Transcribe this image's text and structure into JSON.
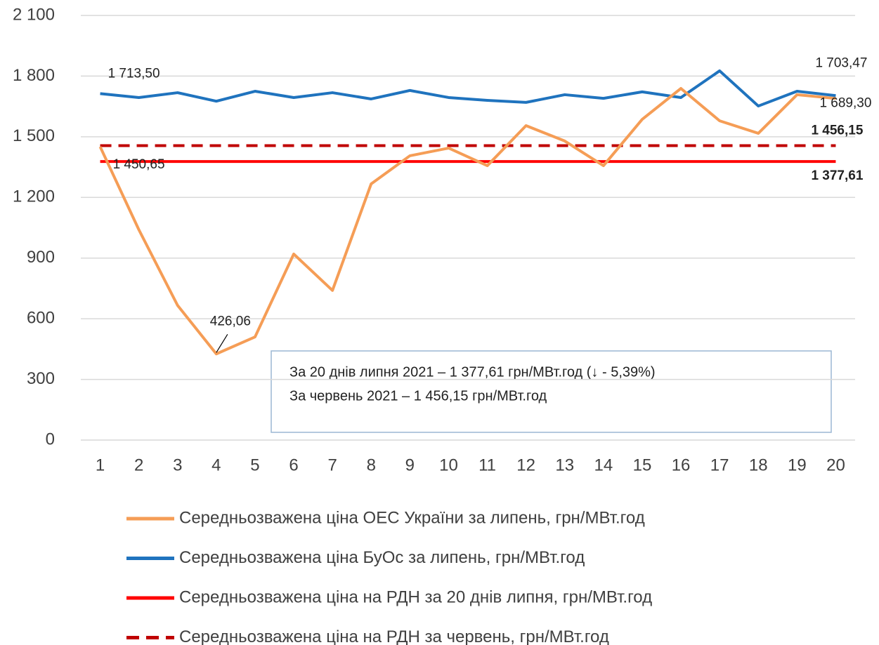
{
  "chart_data": {
    "type": "line",
    "categories": [
      "1",
      "2",
      "3",
      "4",
      "5",
      "6",
      "7",
      "8",
      "9",
      "10",
      "11",
      "12",
      "13",
      "14",
      "15",
      "16",
      "17",
      "18",
      "19",
      "20"
    ],
    "ylim": [
      0,
      2100
    ],
    "yticks": [
      0,
      300,
      600,
      900,
      {
        "value": 1200,
        "label": "1 200"
      },
      {
        "value": 1500,
        "label": "1 500"
      },
      {
        "value": 1800,
        "label": "1 800"
      },
      {
        "value": 2100,
        "label": "2 100"
      }
    ],
    "grid": true,
    "legend": "bottom",
    "series": [
      {
        "name": "Середньозважена ціна ОЕС України за липень, грн/МВт.год",
        "color": "#f59d56",
        "dash": false,
        "values": [
          1450.65,
          1040,
          666,
          426.06,
          510,
          920,
          740,
          1267,
          1406,
          1444,
          1357,
          1555,
          1479,
          1357,
          1586,
          1739,
          1579,
          1517,
          1708,
          1689.3
        ],
        "value_labels": [
          "1 450,65",
          null,
          null,
          "426,06",
          null,
          null,
          null,
          null,
          null,
          null,
          null,
          null,
          null,
          null,
          null,
          null,
          null,
          null,
          null,
          "1 689,30"
        ]
      },
      {
        "name": "Середньозважена ціна БуОс за липень, грн/МВт.год",
        "color": "#1f73be",
        "dash": false,
        "values": [
          1713.5,
          1694,
          1718,
          1676,
          1725,
          1694,
          1718,
          1687,
          1729,
          1694,
          1680,
          1670,
          1708,
          1690,
          1722,
          1694,
          1826,
          1652,
          1725,
          1703.47
        ],
        "value_labels": [
          "1 713,50",
          null,
          null,
          null,
          null,
          null,
          null,
          null,
          null,
          null,
          null,
          null,
          null,
          null,
          null,
          null,
          null,
          null,
          null,
          "1 703,47"
        ]
      },
      {
        "name": "Середньозважена ціна на РДН за 20 днів липня, грн/МВт.год",
        "color": "#ff0000",
        "dash": false,
        "values": [
          1377.61,
          1377.61,
          1377.61,
          1377.61,
          1377.61,
          1377.61,
          1377.61,
          1377.61,
          1377.61,
          1377.61,
          1377.61,
          1377.61,
          1377.61,
          1377.61,
          1377.61,
          1377.61,
          1377.61,
          1377.61,
          1377.61,
          1377.61
        ],
        "value_labels": [
          null,
          null,
          null,
          null,
          null,
          null,
          null,
          null,
          null,
          null,
          null,
          null,
          null,
          null,
          null,
          null,
          null,
          null,
          null,
          "1 377,61"
        ]
      },
      {
        "name": "Середньозважена ціна на РДН за червень, грн/МВт.год",
        "color": "#c00000",
        "dash": true,
        "values": [
          1456.15,
          1456.15,
          1456.15,
          1456.15,
          1456.15,
          1456.15,
          1456.15,
          1456.15,
          1456.15,
          1456.15,
          1456.15,
          1456.15,
          1456.15,
          1456.15,
          1456.15,
          1456.15,
          1456.15,
          1456.15,
          1456.15,
          1456.15
        ],
        "value_labels": [
          null,
          null,
          null,
          null,
          null,
          null,
          null,
          null,
          null,
          null,
          null,
          null,
          null,
          null,
          null,
          null,
          null,
          null,
          null,
          "1 456,15"
        ]
      }
    ],
    "annotation": [
      "За 20 днів липня 2021 – 1 377,61 грн/МВт.год (↓ - 5,39%)",
      "За червень 2021 – 1 456,15 грн/МВт.год"
    ]
  }
}
